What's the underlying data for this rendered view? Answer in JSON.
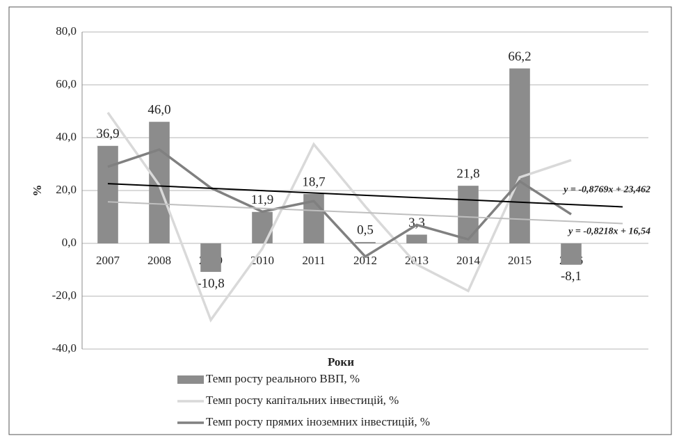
{
  "chart_data": {
    "type": "bar",
    "y_label": "%",
    "x_label": "Роки",
    "categories": [
      "2007",
      "2008",
      "2009",
      "2010",
      "2011",
      "2012",
      "2013",
      "2014",
      "2015",
      "2016",
      null
    ],
    "series": [
      {
        "name": "Темп росту реального ВВП, %",
        "type": "bar",
        "color": "#8c8c8c",
        "values": [
          36.9,
          46.0,
          -10.8,
          11.9,
          18.7,
          0.5,
          3.3,
          21.8,
          66.2,
          -8.1,
          null
        ],
        "value_labels": [
          "36,9",
          "46,0",
          "-10,8",
          "11,9",
          "18,7",
          "0,5",
          "3,3",
          "21,8",
          "66,2",
          "-8,1",
          null
        ],
        "trendline": {
          "slope": -0.8769,
          "intercept": 23.462,
          "label": "y = -0,8769x + 23,462",
          "color": "#000000"
        }
      },
      {
        "name": "Темп росту капітальних інвестицій, %",
        "type": "line",
        "color": "#d9d9d9",
        "values": [
          49.5,
          22,
          -29,
          -2,
          37.5,
          14,
          -8,
          -18,
          25,
          31.5,
          null
        ],
        "trendline": {
          "slope": -0.8218,
          "intercept": 16.54,
          "label": "y = -0,8218x + 16,54",
          "color": "#bfbfbf"
        }
      },
      {
        "name": "Темп росту прямих іноземних інвестицій, %",
        "type": "line",
        "color": "#808080",
        "values": [
          29,
          35.5,
          21,
          12,
          16,
          -5,
          7,
          1.5,
          23.5,
          11,
          null
        ]
      }
    ],
    "ylim": [
      -40,
      80
    ],
    "yticks": [
      {
        "value": -40,
        "label": "-40,0"
      },
      {
        "value": -20,
        "label": "-20,0"
      },
      {
        "value": 0,
        "label": "0,0"
      },
      {
        "value": 20,
        "label": "20,0"
      },
      {
        "value": 40,
        "label": "40,0"
      },
      {
        "value": 60,
        "label": "60,0"
      },
      {
        "value": 80,
        "label": "80,0"
      }
    ],
    "grid": true
  }
}
